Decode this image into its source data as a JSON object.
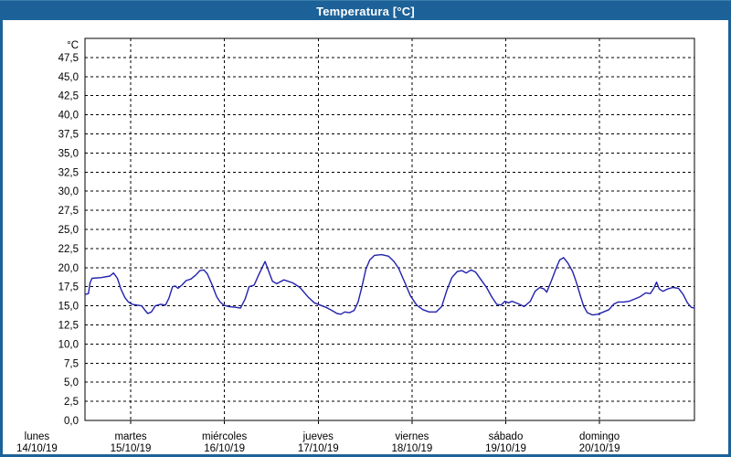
{
  "window": {
    "title": "Temperatura [°C]"
  },
  "colors": {
    "frame_blue": "#1c6299",
    "title_text": "#ffffff",
    "panel_bg": "#ffffff",
    "grid_black": "#000000",
    "curve_blue": "#2121ad"
  },
  "chart_data": {
    "type": "line",
    "title": "Temperatura [°C]",
    "grid": "dashed-black-on-white",
    "legend": "none",
    "y_axis": {
      "unit": "°C",
      "min": 0,
      "max": 50,
      "tick_step": 2.5,
      "tick_labels": [
        "47,5",
        "45,0",
        "42,5",
        "40,0",
        "37,5",
        "35,0",
        "32,5",
        "30,0",
        "27,5",
        "25,0",
        "22,5",
        "20,0",
        "17,5",
        "15,0",
        "12,5",
        "10,0",
        "7,5",
        "5,0",
        "2,5",
        "0,0"
      ]
    },
    "x_axis": {
      "unit": "days",
      "start_hour": 12.3,
      "end_hour": 168.3,
      "tick_every_hours": 24,
      "days": [
        {
          "weekday": "lunes",
          "date": "14/10/19"
        },
        {
          "weekday": "martes",
          "date": "15/10/19"
        },
        {
          "weekday": "miércoles",
          "date": "16/10/19"
        },
        {
          "weekday": "jueves",
          "date": "17/10/19"
        },
        {
          "weekday": "viernes",
          "date": "18/10/19"
        },
        {
          "weekday": "sábado",
          "date": "19/10/19"
        },
        {
          "weekday": "domingo",
          "date": "20/10/19"
        }
      ]
    },
    "series": [
      {
        "name": "Temperatura",
        "color": "#2121ad",
        "points_hours_celsius": [
          [
            12.4,
            16.5
          ],
          [
            13.2,
            16.6
          ],
          [
            13.6,
            18.0
          ],
          [
            14.1,
            18.6
          ],
          [
            16.5,
            18.7
          ],
          [
            18.7,
            18.9
          ],
          [
            19.6,
            19.3
          ],
          [
            20.6,
            18.6
          ],
          [
            21.5,
            17.2
          ],
          [
            22.5,
            16.1
          ],
          [
            23.4,
            15.5
          ],
          [
            24.4,
            15.2
          ],
          [
            25.6,
            15.1
          ],
          [
            26.8,
            15.0
          ],
          [
            27.7,
            14.4
          ],
          [
            28.4,
            14.0
          ],
          [
            29.3,
            14.2
          ],
          [
            30.3,
            15.0
          ],
          [
            31.7,
            15.2
          ],
          [
            32.9,
            15.1
          ],
          [
            33.8,
            16.0
          ],
          [
            34.7,
            17.5
          ],
          [
            35.4,
            17.6
          ],
          [
            36.1,
            17.3
          ],
          [
            37.1,
            17.7
          ],
          [
            38.2,
            18.3
          ],
          [
            39.4,
            18.5
          ],
          [
            40.6,
            19.0
          ],
          [
            41.7,
            19.6
          ],
          [
            42.7,
            19.7
          ],
          [
            43.6,
            19.2
          ],
          [
            44.8,
            17.8
          ],
          [
            46.0,
            16.2
          ],
          [
            46.9,
            15.5
          ],
          [
            47.8,
            15.1
          ],
          [
            49.1,
            14.9
          ],
          [
            51.0,
            14.8
          ],
          [
            52.1,
            14.7
          ],
          [
            53.3,
            15.9
          ],
          [
            54.3,
            17.5
          ],
          [
            55.6,
            17.7
          ],
          [
            56.8,
            19.1
          ],
          [
            58.4,
            20.8
          ],
          [
            59.5,
            19.3
          ],
          [
            60.3,
            18.2
          ],
          [
            61.4,
            17.9
          ],
          [
            63.2,
            18.4
          ],
          [
            65.5,
            18.0
          ],
          [
            67.3,
            17.4
          ],
          [
            69.5,
            16.1
          ],
          [
            71.0,
            15.4
          ],
          [
            72.5,
            15.1
          ],
          [
            74.0,
            14.8
          ],
          [
            75.5,
            14.4
          ],
          [
            76.8,
            14.0
          ],
          [
            77.8,
            13.9
          ],
          [
            78.8,
            14.2
          ],
          [
            80.0,
            14.1
          ],
          [
            81.2,
            14.4
          ],
          [
            82.2,
            15.5
          ],
          [
            83.2,
            17.5
          ],
          [
            84.2,
            19.8
          ],
          [
            85.2,
            21.0
          ],
          [
            86.4,
            21.6
          ],
          [
            88.2,
            21.7
          ],
          [
            90.0,
            21.5
          ],
          [
            91.4,
            20.8
          ],
          [
            92.6,
            19.9
          ],
          [
            94.2,
            18.0
          ],
          [
            95.6,
            16.3
          ],
          [
            97.2,
            15.1
          ],
          [
            98.8,
            14.5
          ],
          [
            100.4,
            14.2
          ],
          [
            102.2,
            14.2
          ],
          [
            103.6,
            14.9
          ],
          [
            104.9,
            17.0
          ],
          [
            106.2,
            18.7
          ],
          [
            107.6,
            19.5
          ],
          [
            108.8,
            19.6
          ],
          [
            109.9,
            19.3
          ],
          [
            111.1,
            19.7
          ],
          [
            112.3,
            19.4
          ],
          [
            113.7,
            18.4
          ],
          [
            115.1,
            17.4
          ],
          [
            116.5,
            16.1
          ],
          [
            117.7,
            15.2
          ],
          [
            118.8,
            15.1
          ],
          [
            119.8,
            15.6
          ],
          [
            120.7,
            15.4
          ],
          [
            121.6,
            15.6
          ],
          [
            123.1,
            15.3
          ],
          [
            124.7,
            14.9
          ],
          [
            126.3,
            15.6
          ],
          [
            127.5,
            16.9
          ],
          [
            128.7,
            17.4
          ],
          [
            129.8,
            17.2
          ],
          [
            130.5,
            16.8
          ],
          [
            131.7,
            18.3
          ],
          [
            132.9,
            19.9
          ],
          [
            133.8,
            21.0
          ],
          [
            134.8,
            21.3
          ],
          [
            135.9,
            20.6
          ],
          [
            137.1,
            19.5
          ],
          [
            138.0,
            18.2
          ],
          [
            139.0,
            16.5
          ],
          [
            139.9,
            15.0
          ],
          [
            140.9,
            14.1
          ],
          [
            142.2,
            13.8
          ],
          [
            143.6,
            13.9
          ],
          [
            145.0,
            14.2
          ],
          [
            146.4,
            14.5
          ],
          [
            147.6,
            15.2
          ],
          [
            148.8,
            15.5
          ],
          [
            150.2,
            15.5
          ],
          [
            151.6,
            15.6
          ],
          [
            153.0,
            15.9
          ],
          [
            154.4,
            16.2
          ],
          [
            155.8,
            16.7
          ],
          [
            157.0,
            16.6
          ],
          [
            157.9,
            17.3
          ],
          [
            158.6,
            18.1
          ],
          [
            159.3,
            17.2
          ],
          [
            160.2,
            16.9
          ],
          [
            161.4,
            17.2
          ],
          [
            162.8,
            17.4
          ],
          [
            164.2,
            17.3
          ],
          [
            165.4,
            16.5
          ],
          [
            166.5,
            15.4
          ],
          [
            167.5,
            14.8
          ],
          [
            168.3,
            14.7
          ]
        ]
      }
    ]
  }
}
